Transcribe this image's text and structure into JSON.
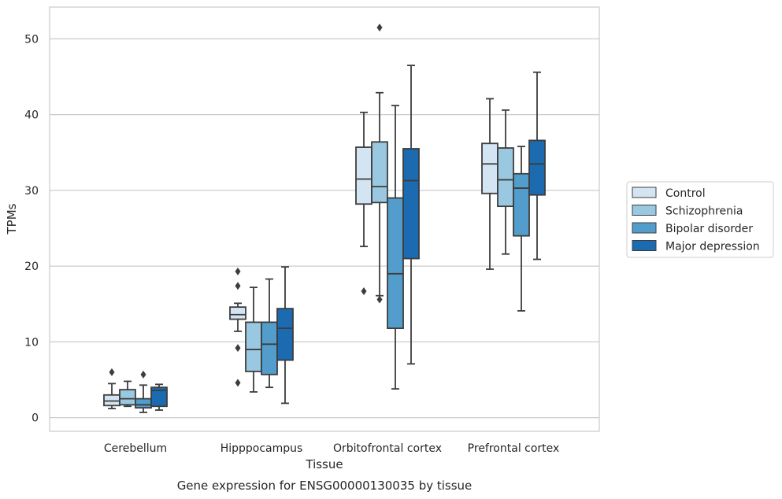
{
  "chart_data": {
    "type": "box",
    "caption": "Gene expression for ENSG00000130035 by tissue",
    "xlabel": "Tissue",
    "ylabel": "TPMs",
    "ylim": [
      -1.8,
      54.2
    ],
    "yticks": [
      0,
      10,
      20,
      30,
      40,
      50
    ],
    "grid": "horizontal",
    "legend_position": "right",
    "categories": [
      "Cerebellum",
      "Hipppocampus",
      "Orbitofrontal cortex",
      "Prefrontal cortex"
    ],
    "series": [
      {
        "name": "Control",
        "color": "#d3e4f3",
        "boxes": [
          {
            "whisker_low": 1.2,
            "q1": 1.6,
            "median": 2.2,
            "q3": 3.0,
            "whisker_high": 4.5,
            "outliers": [
              6.0
            ]
          },
          {
            "whisker_low": 11.4,
            "q1": 13.0,
            "median": 13.6,
            "q3": 14.6,
            "whisker_high": 15.1,
            "outliers": [
              19.3,
              17.4,
              9.2,
              4.6
            ]
          },
          {
            "whisker_low": 22.6,
            "q1": 28.2,
            "median": 31.5,
            "q3": 35.7,
            "whisker_high": 40.3,
            "outliers": [
              16.7
            ]
          },
          {
            "whisker_low": 19.6,
            "q1": 29.6,
            "median": 33.5,
            "q3": 36.2,
            "whisker_high": 42.1,
            "outliers": []
          }
        ]
      },
      {
        "name": "Schizophrenia",
        "color": "#9ac8e0",
        "boxes": [
          {
            "whisker_low": 1.5,
            "q1": 1.7,
            "median": 2.5,
            "q3": 3.7,
            "whisker_high": 4.8,
            "outliers": []
          },
          {
            "whisker_low": 3.4,
            "q1": 6.1,
            "median": 9.0,
            "q3": 12.6,
            "whisker_high": 17.2,
            "outliers": []
          },
          {
            "whisker_low": 16.1,
            "q1": 28.4,
            "median": 30.5,
            "q3": 36.4,
            "whisker_high": 42.9,
            "outliers": [
              51.5,
              15.6
            ]
          },
          {
            "whisker_low": 21.6,
            "q1": 27.9,
            "median": 31.4,
            "q3": 35.6,
            "whisker_high": 40.6,
            "outliers": []
          }
        ]
      },
      {
        "name": "Bipolar disorder",
        "color": "#529dcc",
        "boxes": [
          {
            "whisker_low": 0.7,
            "q1": 1.3,
            "median": 1.7,
            "q3": 2.5,
            "whisker_high": 4.3,
            "outliers": [
              5.7
            ]
          },
          {
            "whisker_low": 4.0,
            "q1": 5.7,
            "median": 9.7,
            "q3": 12.6,
            "whisker_high": 18.3,
            "outliers": []
          },
          {
            "whisker_low": 3.8,
            "q1": 11.8,
            "median": 19.0,
            "q3": 29.0,
            "whisker_high": 41.2,
            "outliers": []
          },
          {
            "whisker_low": 14.1,
            "q1": 24.0,
            "median": 30.3,
            "q3": 32.2,
            "whisker_high": 35.8,
            "outliers": []
          }
        ]
      },
      {
        "name": "Major depression",
        "color": "#1c6aaf",
        "boxes": [
          {
            "whisker_low": 1.0,
            "q1": 1.5,
            "median": 3.6,
            "q3": 4.0,
            "whisker_high": 4.4,
            "outliers": []
          },
          {
            "whisker_low": 1.9,
            "q1": 7.6,
            "median": 11.8,
            "q3": 14.4,
            "whisker_high": 19.9,
            "outliers": []
          },
          {
            "whisker_low": 7.1,
            "q1": 21.0,
            "median": 31.3,
            "q3": 35.5,
            "whisker_high": 46.5,
            "outliers": []
          },
          {
            "whisker_low": 20.9,
            "q1": 29.4,
            "median": 33.5,
            "q3": 36.6,
            "whisker_high": 45.6,
            "outliers": []
          }
        ]
      }
    ]
  }
}
